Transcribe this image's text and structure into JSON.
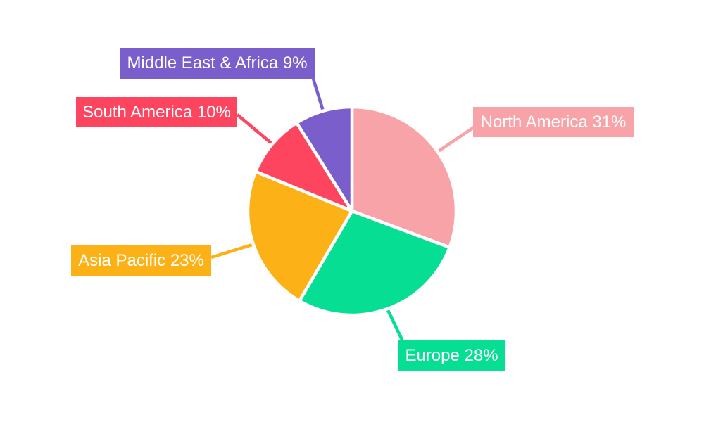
{
  "page": {
    "background": "#FFFFFF"
  },
  "chart_data": {
    "type": "pie",
    "title": "",
    "value_suffix": "%",
    "direction": "clockwise",
    "start_angle_deg": 0,
    "legend_position": "callout-labels",
    "grid": false,
    "slices": [
      {
        "label": "North America",
        "value": 31,
        "display": "North America 31%",
        "color": "#F8A3A8"
      },
      {
        "label": "Europe",
        "value": 28,
        "display": "Europe 28%",
        "color": "#06DE94"
      },
      {
        "label": "Asia Pacific",
        "value": 23,
        "display": "Asia Pacific 23%",
        "color": "#FCB116"
      },
      {
        "label": "South America",
        "value": 10,
        "display": "South America 10%",
        "color": "#FD4560"
      },
      {
        "label": "Middle East & Africa",
        "value": 9,
        "display": "Middle East & Africa 9%",
        "color": "#7A5FCC"
      }
    ]
  }
}
